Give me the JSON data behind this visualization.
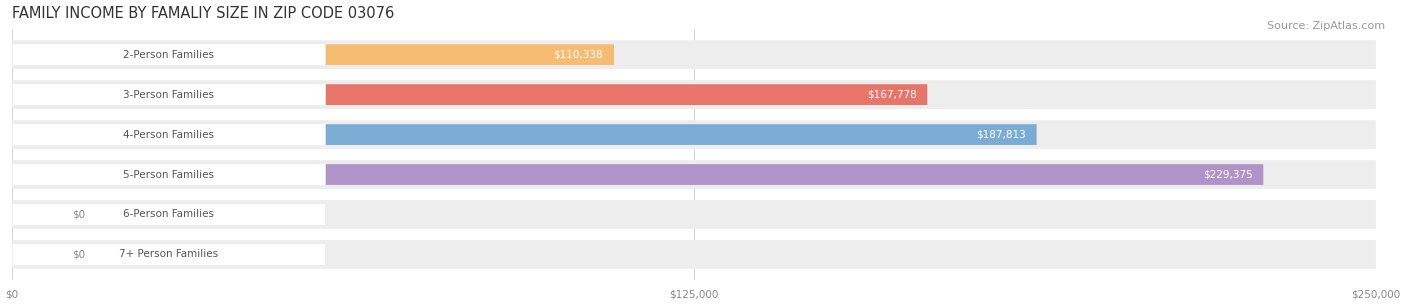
{
  "title": "FAMILY INCOME BY FAMALIY SIZE IN ZIP CODE 03076",
  "source": "Source: ZipAtlas.com",
  "categories": [
    "2-Person Families",
    "3-Person Families",
    "4-Person Families",
    "5-Person Families",
    "6-Person Families",
    "7+ Person Families"
  ],
  "values": [
    110338,
    167778,
    187813,
    229375,
    0,
    0
  ],
  "value_labels": [
    "$110,338",
    "$167,778",
    "$187,813",
    "$229,375",
    "$0",
    "$0"
  ],
  "bar_colors": [
    "#F5BC72",
    "#E8756A",
    "#7BADD4",
    "#B094C8",
    "#5BBFB5",
    "#B8B4D8"
  ],
  "bar_bg_color": "#EDEDEE",
  "xlim": [
    0,
    250000
  ],
  "xticks": [
    0,
    125000,
    250000
  ],
  "xtick_labels": [
    "$0",
    "$125,000",
    "$250,000"
  ],
  "title_fontsize": 10.5,
  "label_fontsize": 7.5,
  "value_fontsize": 7.5,
  "source_fontsize": 8,
  "background_color": "#FFFFFF"
}
